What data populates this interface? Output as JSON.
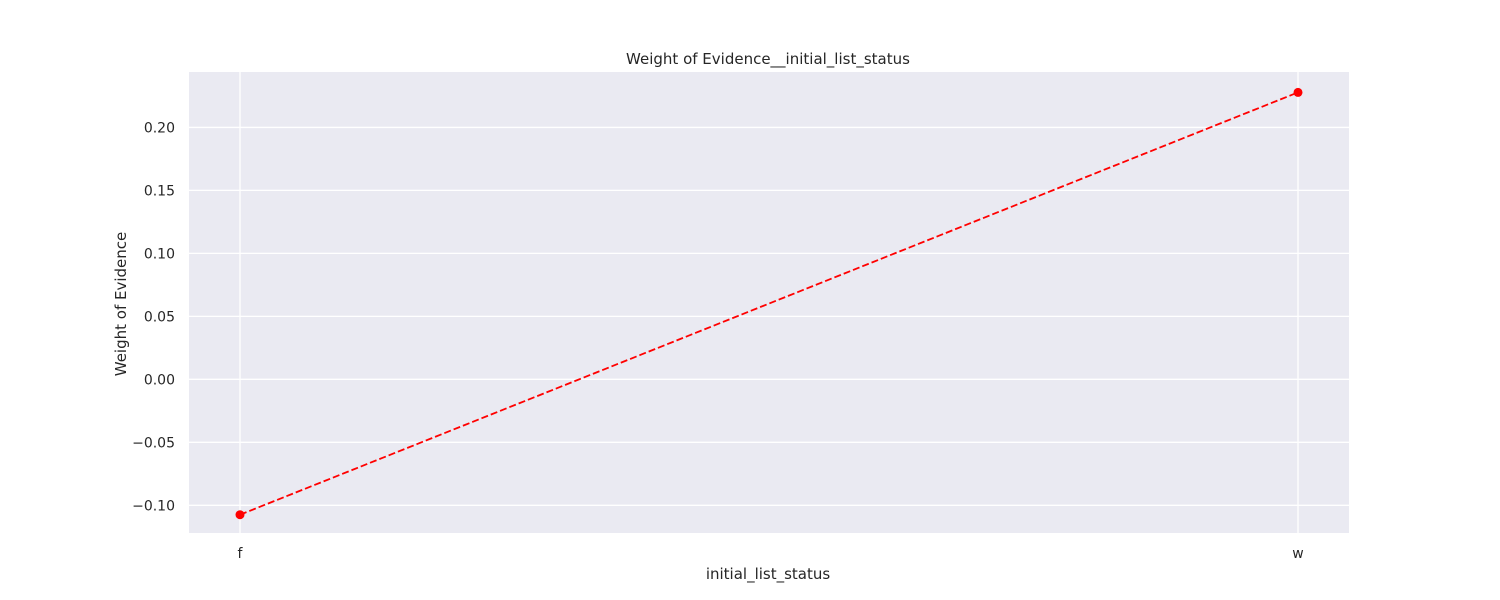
{
  "chart_data": {
    "type": "line",
    "title": "Weight of Evidence__initial_list_status",
    "xlabel": "initial_list_status",
    "ylabel": "Weight of Evidence",
    "categories": [
      "f",
      "w"
    ],
    "series": [
      {
        "values": [
          -0.1075,
          0.2278
        ]
      }
    ],
    "ylim": [
      -0.122,
      0.244
    ],
    "yticks": [
      -0.1,
      -0.05,
      0.0,
      0.05,
      0.1,
      0.15,
      0.2
    ],
    "ytick_labels": [
      "−0.10",
      "−0.05",
      "0.00",
      "0.05",
      "0.10",
      "0.15",
      "0.20"
    ],
    "line_style": "dashed",
    "marker": "circle",
    "grid": true,
    "legend": "none",
    "colors": {
      "line": "#ff0000",
      "plot_background": "#eaeaf2",
      "grid": "#ffffff",
      "page_background": "#ffffff"
    }
  }
}
